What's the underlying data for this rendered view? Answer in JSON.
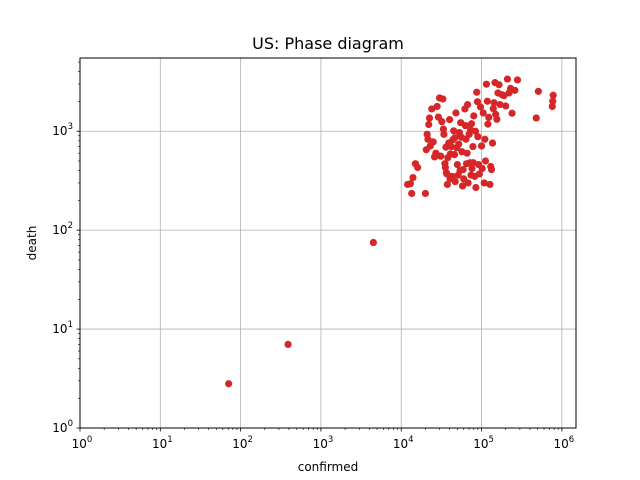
{
  "chart_data": {
    "type": "scatter",
    "title": "US: Phase diagram",
    "xlabel": "confirmed",
    "ylabel": "death",
    "xscale": "log",
    "yscale": "log",
    "xlim": [
      1,
      1500000
    ],
    "ylim": [
      1,
      5500
    ],
    "grid": true,
    "marker_color": "#d62728",
    "x_ticks": [
      {
        "base": "10",
        "exp": "0",
        "value": 1
      },
      {
        "base": "10",
        "exp": "1",
        "value": 10
      },
      {
        "base": "10",
        "exp": "2",
        "value": 100
      },
      {
        "base": "10",
        "exp": "3",
        "value": 1000
      },
      {
        "base": "10",
        "exp": "4",
        "value": 10000
      },
      {
        "base": "10",
        "exp": "5",
        "value": 100000
      },
      {
        "base": "10",
        "exp": "6",
        "value": 1000000
      }
    ],
    "y_ticks": [
      {
        "base": "10",
        "exp": "0",
        "value": 1
      },
      {
        "base": "10",
        "exp": "1",
        "value": 10
      },
      {
        "base": "10",
        "exp": "2",
        "value": 100
      },
      {
        "base": "10",
        "exp": "3",
        "value": 1000
      }
    ],
    "series": [
      {
        "points": [
          [
            71,
            2.8
          ],
          [
            390,
            7
          ],
          [
            4500,
            75
          ],
          [
            12000,
            290
          ],
          [
            13000,
            295
          ],
          [
            13500,
            235
          ],
          [
            14000,
            340
          ],
          [
            15000,
            470
          ],
          [
            16000,
            430
          ],
          [
            20000,
            235
          ],
          [
            20500,
            650
          ],
          [
            21000,
            930
          ],
          [
            21500,
            830
          ],
          [
            22000,
            1170
          ],
          [
            22500,
            1360
          ],
          [
            23000,
            710
          ],
          [
            24000,
            1680
          ],
          [
            25000,
            780
          ],
          [
            26000,
            550
          ],
          [
            27000,
            600
          ],
          [
            28000,
            1780
          ],
          [
            29000,
            1390
          ],
          [
            30000,
            2170
          ],
          [
            31000,
            560
          ],
          [
            32000,
            1250
          ],
          [
            33000,
            2120
          ],
          [
            33500,
            1050
          ],
          [
            34000,
            930
          ],
          [
            35000,
            470
          ],
          [
            35500,
            430
          ],
          [
            36000,
            690
          ],
          [
            36500,
            380
          ],
          [
            37000,
            370
          ],
          [
            37500,
            290
          ],
          [
            38000,
            540
          ],
          [
            39000,
            760
          ],
          [
            40000,
            1310
          ],
          [
            40500,
            330
          ],
          [
            41000,
            590
          ],
          [
            42000,
            700
          ],
          [
            43000,
            350
          ],
          [
            44000,
            820
          ],
          [
            45000,
            1010
          ],
          [
            46000,
            580
          ],
          [
            46500,
            860
          ],
          [
            47000,
            310
          ],
          [
            48000,
            1530
          ],
          [
            49000,
            680
          ],
          [
            50000,
            460
          ],
          [
            51000,
            360
          ],
          [
            52000,
            740
          ],
          [
            53000,
            970
          ],
          [
            54000,
            400
          ],
          [
            55000,
            1220
          ],
          [
            56000,
            870
          ],
          [
            57000,
            620
          ],
          [
            58000,
            280
          ],
          [
            59000,
            410
          ],
          [
            60000,
            330
          ],
          [
            62000,
            1680
          ],
          [
            63000,
            1140
          ],
          [
            64000,
            830
          ],
          [
            65000,
            470
          ],
          [
            66000,
            600
          ],
          [
            67000,
            1860
          ],
          [
            68000,
            300
          ],
          [
            70000,
            930
          ],
          [
            72000,
            480
          ],
          [
            73000,
            1030
          ],
          [
            74000,
            360
          ],
          [
            75000,
            1190
          ],
          [
            76000,
            420
          ],
          [
            78000,
            700
          ],
          [
            79000,
            480
          ],
          [
            80000,
            1430
          ],
          [
            82000,
            350
          ],
          [
            84000,
            1000
          ],
          [
            85000,
            270
          ],
          [
            87000,
            2480
          ],
          [
            89000,
            1990
          ],
          [
            90000,
            880
          ],
          [
            92000,
            460
          ],
          [
            94000,
            370
          ],
          [
            97000,
            1760
          ],
          [
            100000,
            710
          ],
          [
            102000,
            420
          ],
          [
            105000,
            1530
          ],
          [
            108000,
            300
          ],
          [
            110000,
            830
          ],
          [
            112000,
            500
          ],
          [
            115000,
            2990
          ],
          [
            118000,
            2010
          ],
          [
            120000,
            1180
          ],
          [
            123000,
            1380
          ],
          [
            127000,
            290
          ],
          [
            130000,
            440
          ],
          [
            133000,
            410
          ],
          [
            137000,
            760
          ],
          [
            140000,
            1690
          ],
          [
            143000,
            1940
          ],
          [
            147000,
            3100
          ],
          [
            150000,
            1480
          ],
          [
            155000,
            1320
          ],
          [
            160000,
            2440
          ],
          [
            165000,
            2950
          ],
          [
            170000,
            1860
          ],
          [
            180000,
            2340
          ],
          [
            190000,
            2290
          ],
          [
            200000,
            1800
          ],
          [
            210000,
            3370
          ],
          [
            220000,
            2440
          ],
          [
            230000,
            2710
          ],
          [
            240000,
            1520
          ],
          [
            260000,
            2590
          ],
          [
            280000,
            3300
          ],
          [
            480000,
            1360
          ],
          [
            510000,
            2530
          ],
          [
            760000,
            1780
          ],
          [
            770000,
            2010
          ],
          [
            780000,
            2310
          ]
        ]
      }
    ]
  }
}
